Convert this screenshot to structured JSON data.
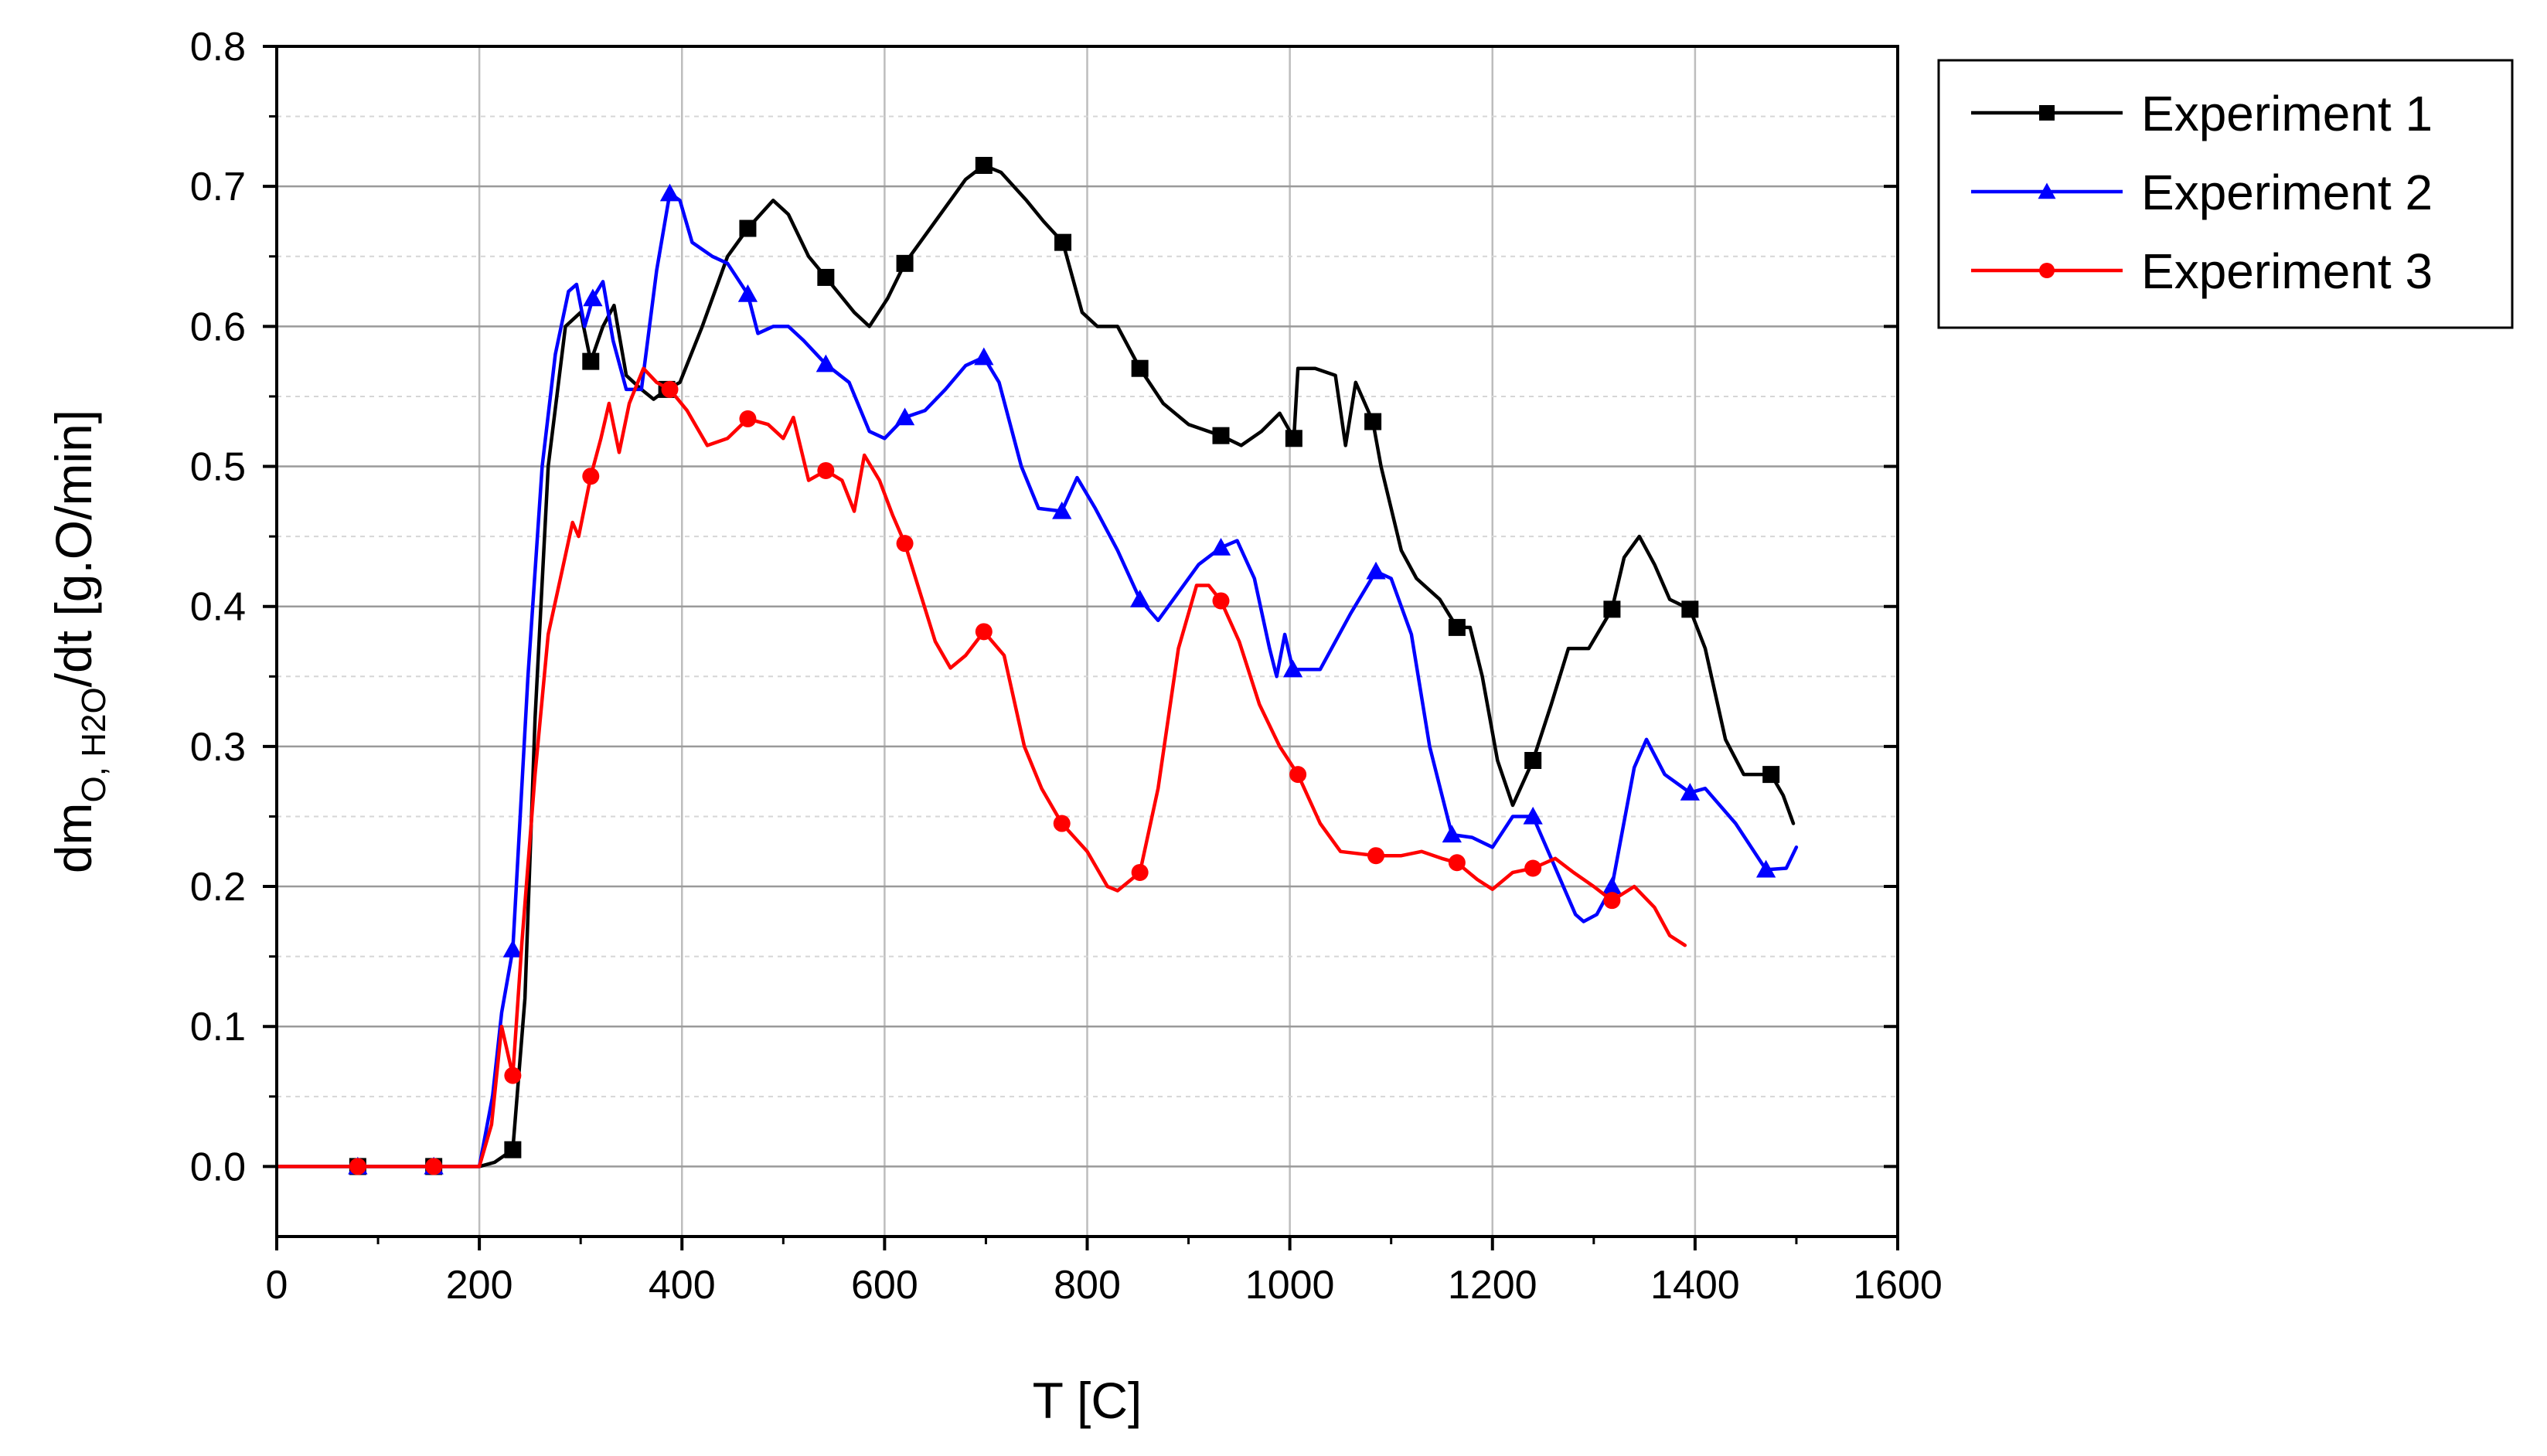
{
  "chart_data": {
    "type": "line",
    "title": "",
    "xlabel": "T [C]",
    "ylabel": {
      "prefix": "dm",
      "subscript": "O, H2O",
      "suffix": "/dt [g.O/min]"
    },
    "xlim": [
      0,
      1600
    ],
    "ylim": [
      -0.05,
      0.8
    ],
    "x_ticks": [
      0,
      200,
      400,
      600,
      800,
      1000,
      1200,
      1400,
      1600
    ],
    "x_tick_labels": [
      "0",
      "200",
      "400",
      "600",
      "800",
      "1000",
      "1200",
      "1400",
      "1600"
    ],
    "y_ticks": [
      0.0,
      0.1,
      0.2,
      0.3,
      0.4,
      0.5,
      0.6,
      0.7,
      0.8
    ],
    "y_tick_labels": [
      "0.0",
      "0.1",
      "0.2",
      "0.3",
      "0.4",
      "0.5",
      "0.6",
      "0.7",
      "0.8"
    ],
    "grid": true,
    "legend_position": "outside-top-right",
    "series": [
      {
        "name": "Experiment 1",
        "color": "#000000",
        "marker": "square",
        "points": [
          [
            0,
            0
          ],
          [
            80,
            0
          ],
          [
            155,
            0
          ],
          [
            200,
            0
          ],
          [
            215,
            0.003
          ],
          [
            233,
            0.012
          ],
          [
            245,
            0.12
          ],
          [
            255,
            0.32
          ],
          [
            268,
            0.5
          ],
          [
            285,
            0.6
          ],
          [
            300,
            0.61
          ],
          [
            310,
            0.575
          ],
          [
            322,
            0.6
          ],
          [
            333,
            0.615
          ],
          [
            345,
            0.565
          ],
          [
            360,
            0.555
          ],
          [
            372,
            0.548
          ],
          [
            385,
            0.555
          ],
          [
            398,
            0.56
          ],
          [
            420,
            0.6
          ],
          [
            445,
            0.65
          ],
          [
            465,
            0.67
          ],
          [
            490,
            0.69
          ],
          [
            505,
            0.68
          ],
          [
            525,
            0.65
          ],
          [
            542,
            0.635
          ],
          [
            570,
            0.61
          ],
          [
            585,
            0.6
          ],
          [
            603,
            0.62
          ],
          [
            620,
            0.645
          ],
          [
            650,
            0.675
          ],
          [
            680,
            0.705
          ],
          [
            698,
            0.715
          ],
          [
            715,
            0.71
          ],
          [
            740,
            0.69
          ],
          [
            757,
            0.675
          ],
          [
            776,
            0.66
          ],
          [
            795,
            0.61
          ],
          [
            810,
            0.6
          ],
          [
            830,
            0.6
          ],
          [
            852,
            0.57
          ],
          [
            875,
            0.545
          ],
          [
            900,
            0.53
          ],
          [
            932,
            0.522
          ],
          [
            952,
            0.515
          ],
          [
            972,
            0.525
          ],
          [
            990,
            0.538
          ],
          [
            1004,
            0.52
          ],
          [
            1008,
            0.57
          ],
          [
            1025,
            0.57
          ],
          [
            1045,
            0.565
          ],
          [
            1055,
            0.515
          ],
          [
            1065,
            0.56
          ],
          [
            1082,
            0.532
          ],
          [
            1090,
            0.5
          ],
          [
            1110,
            0.44
          ],
          [
            1125,
            0.42
          ],
          [
            1148,
            0.405
          ],
          [
            1165,
            0.385
          ],
          [
            1178,
            0.385
          ],
          [
            1190,
            0.35
          ],
          [
            1205,
            0.29
          ],
          [
            1220,
            0.258
          ],
          [
            1240,
            0.29
          ],
          [
            1258,
            0.33
          ],
          [
            1275,
            0.37
          ],
          [
            1295,
            0.37
          ],
          [
            1318,
            0.398
          ],
          [
            1330,
            0.435
          ],
          [
            1345,
            0.45
          ],
          [
            1360,
            0.43
          ],
          [
            1375,
            0.405
          ],
          [
            1395,
            0.398
          ],
          [
            1410,
            0.37
          ],
          [
            1430,
            0.305
          ],
          [
            1448,
            0.28
          ],
          [
            1475,
            0.28
          ],
          [
            1487,
            0.265
          ],
          [
            1497,
            0.245
          ]
        ],
        "marker_points": [
          [
            80,
            0
          ],
          [
            155,
            0
          ],
          [
            233,
            0.012
          ],
          [
            310,
            0.575
          ],
          [
            385,
            0.555
          ],
          [
            465,
            0.67
          ],
          [
            542,
            0.635
          ],
          [
            620,
            0.645
          ],
          [
            698,
            0.715
          ],
          [
            776,
            0.66
          ],
          [
            852,
            0.57
          ],
          [
            932,
            0.522
          ],
          [
            1004,
            0.52
          ],
          [
            1082,
            0.532
          ],
          [
            1165,
            0.385
          ],
          [
            1240,
            0.29
          ],
          [
            1318,
            0.398
          ],
          [
            1395,
            0.398
          ],
          [
            1475,
            0.28
          ]
        ]
      },
      {
        "name": "Experiment 2",
        "color": "#0000ff",
        "marker": "triangle",
        "points": [
          [
            0,
            0
          ],
          [
            80,
            0
          ],
          [
            155,
            0
          ],
          [
            200,
            0
          ],
          [
            213,
            0.05
          ],
          [
            222,
            0.11
          ],
          [
            233,
            0.155
          ],
          [
            248,
            0.35
          ],
          [
            262,
            0.5
          ],
          [
            275,
            0.58
          ],
          [
            288,
            0.625
          ],
          [
            296,
            0.63
          ],
          [
            304,
            0.6
          ],
          [
            312,
            0.62
          ],
          [
            322,
            0.632
          ],
          [
            332,
            0.59
          ],
          [
            345,
            0.555
          ],
          [
            360,
            0.555
          ],
          [
            375,
            0.64
          ],
          [
            388,
            0.695
          ],
          [
            398,
            0.69
          ],
          [
            410,
            0.66
          ],
          [
            430,
            0.65
          ],
          [
            445,
            0.645
          ],
          [
            465,
            0.623
          ],
          [
            475,
            0.595
          ],
          [
            490,
            0.6
          ],
          [
            505,
            0.6
          ],
          [
            520,
            0.59
          ],
          [
            542,
            0.573
          ],
          [
            565,
            0.56
          ],
          [
            585,
            0.525
          ],
          [
            600,
            0.52
          ],
          [
            620,
            0.535
          ],
          [
            640,
            0.54
          ],
          [
            660,
            0.555
          ],
          [
            680,
            0.572
          ],
          [
            698,
            0.578
          ],
          [
            713,
            0.56
          ],
          [
            735,
            0.5
          ],
          [
            752,
            0.47
          ],
          [
            775,
            0.468
          ],
          [
            790,
            0.492
          ],
          [
            808,
            0.47
          ],
          [
            830,
            0.44
          ],
          [
            852,
            0.405
          ],
          [
            870,
            0.39
          ],
          [
            890,
            0.41
          ],
          [
            910,
            0.43
          ],
          [
            932,
            0.442
          ],
          [
            948,
            0.447
          ],
          [
            965,
            0.42
          ],
          [
            980,
            0.37
          ],
          [
            987,
            0.35
          ],
          [
            995,
            0.38
          ],
          [
            1003,
            0.355
          ],
          [
            1030,
            0.355
          ],
          [
            1060,
            0.395
          ],
          [
            1085,
            0.425
          ],
          [
            1100,
            0.42
          ],
          [
            1120,
            0.38
          ],
          [
            1138,
            0.3
          ],
          [
            1160,
            0.237
          ],
          [
            1180,
            0.235
          ],
          [
            1200,
            0.228
          ],
          [
            1220,
            0.25
          ],
          [
            1240,
            0.25
          ],
          [
            1258,
            0.22
          ],
          [
            1270,
            0.2
          ],
          [
            1282,
            0.18
          ],
          [
            1290,
            0.175
          ],
          [
            1303,
            0.18
          ],
          [
            1318,
            0.2
          ],
          [
            1340,
            0.285
          ],
          [
            1352,
            0.305
          ],
          [
            1370,
            0.28
          ],
          [
            1395,
            0.267
          ],
          [
            1410,
            0.27
          ],
          [
            1440,
            0.245
          ],
          [
            1470,
            0.212
          ],
          [
            1490,
            0.213
          ],
          [
            1500,
            0.228
          ]
        ],
        "marker_points": [
          [
            80,
            0
          ],
          [
            155,
            0
          ],
          [
            233,
            0.155
          ],
          [
            312,
            0.62
          ],
          [
            388,
            0.695
          ],
          [
            465,
            0.623
          ],
          [
            542,
            0.573
          ],
          [
            620,
            0.535
          ],
          [
            698,
            0.578
          ],
          [
            775,
            0.468
          ],
          [
            852,
            0.405
          ],
          [
            932,
            0.442
          ],
          [
            1003,
            0.355
          ],
          [
            1085,
            0.425
          ],
          [
            1160,
            0.237
          ],
          [
            1240,
            0.25
          ],
          [
            1318,
            0.2
          ],
          [
            1395,
            0.267
          ],
          [
            1470,
            0.212
          ]
        ]
      },
      {
        "name": "Experiment 3",
        "color": "#ff0000",
        "marker": "circle",
        "points": [
          [
            0,
            0
          ],
          [
            80,
            0
          ],
          [
            155,
            0
          ],
          [
            200,
            0
          ],
          [
            212,
            0.03
          ],
          [
            222,
            0.1
          ],
          [
            233,
            0.065
          ],
          [
            242,
            0.16
          ],
          [
            255,
            0.28
          ],
          [
            268,
            0.38
          ],
          [
            280,
            0.42
          ],
          [
            292,
            0.46
          ],
          [
            298,
            0.45
          ],
          [
            310,
            0.493
          ],
          [
            320,
            0.52
          ],
          [
            328,
            0.545
          ],
          [
            338,
            0.51
          ],
          [
            348,
            0.545
          ],
          [
            362,
            0.57
          ],
          [
            375,
            0.56
          ],
          [
            388,
            0.555
          ],
          [
            405,
            0.54
          ],
          [
            425,
            0.515
          ],
          [
            445,
            0.52
          ],
          [
            465,
            0.534
          ],
          [
            485,
            0.53
          ],
          [
            500,
            0.52
          ],
          [
            510,
            0.535
          ],
          [
            525,
            0.49
          ],
          [
            542,
            0.497
          ],
          [
            558,
            0.49
          ],
          [
            570,
            0.468
          ],
          [
            580,
            0.508
          ],
          [
            595,
            0.49
          ],
          [
            608,
            0.465
          ],
          [
            620,
            0.445
          ],
          [
            635,
            0.41
          ],
          [
            650,
            0.375
          ],
          [
            665,
            0.356
          ],
          [
            680,
            0.365
          ],
          [
            698,
            0.382
          ],
          [
            718,
            0.365
          ],
          [
            738,
            0.3
          ],
          [
            755,
            0.27
          ],
          [
            775,
            0.245
          ],
          [
            800,
            0.225
          ],
          [
            820,
            0.2
          ],
          [
            830,
            0.197
          ],
          [
            852,
            0.21
          ],
          [
            870,
            0.27
          ],
          [
            890,
            0.37
          ],
          [
            908,
            0.415
          ],
          [
            920,
            0.415
          ],
          [
            932,
            0.404
          ],
          [
            950,
            0.375
          ],
          [
            970,
            0.33
          ],
          [
            990,
            0.3
          ],
          [
            1008,
            0.28
          ],
          [
            1030,
            0.245
          ],
          [
            1050,
            0.225
          ],
          [
            1085,
            0.222
          ],
          [
            1110,
            0.222
          ],
          [
            1130,
            0.225
          ],
          [
            1150,
            0.22
          ],
          [
            1165,
            0.217
          ],
          [
            1185,
            0.205
          ],
          [
            1200,
            0.198
          ],
          [
            1220,
            0.21
          ],
          [
            1240,
            0.213
          ],
          [
            1262,
            0.22
          ],
          [
            1280,
            0.21
          ],
          [
            1300,
            0.2
          ],
          [
            1318,
            0.19
          ],
          [
            1340,
            0.2
          ],
          [
            1360,
            0.185
          ],
          [
            1375,
            0.165
          ],
          [
            1390,
            0.158
          ]
        ],
        "marker_points": [
          [
            80,
            0
          ],
          [
            155,
            0
          ],
          [
            233,
            0.065
          ],
          [
            310,
            0.493
          ],
          [
            388,
            0.555
          ],
          [
            465,
            0.534
          ],
          [
            542,
            0.497
          ],
          [
            620,
            0.445
          ],
          [
            698,
            0.382
          ],
          [
            775,
            0.245
          ],
          [
            852,
            0.21
          ],
          [
            932,
            0.404
          ],
          [
            1008,
            0.28
          ],
          [
            1085,
            0.222
          ],
          [
            1165,
            0.217
          ],
          [
            1240,
            0.213
          ],
          [
            1318,
            0.19
          ]
        ]
      }
    ]
  }
}
